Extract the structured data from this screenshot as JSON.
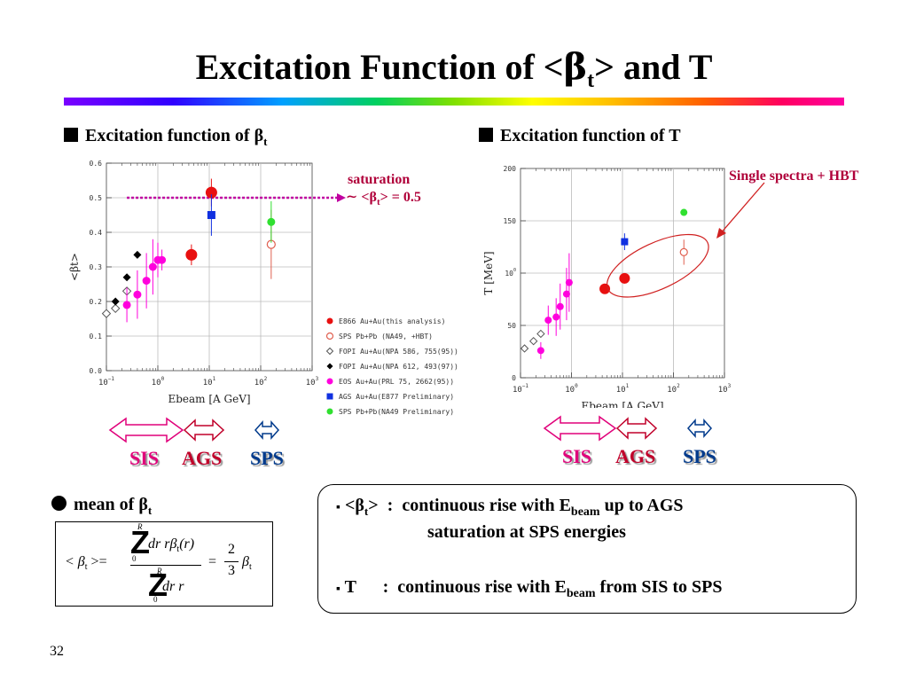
{
  "slide": {
    "title_parts": [
      "Excitation Function of <",
      "β",
      "t",
      "> and T"
    ],
    "page_number": "32"
  },
  "left_section": {
    "label": "Excitation function of ",
    "symbol": "β",
    "sub": "t"
  },
  "right_section": {
    "label": "Excitation function of ",
    "symbol": "T"
  },
  "annotation_saturation": {
    "line1": "saturation",
    "line2_prefix": "∼ <",
    "symbol": "β",
    "sub": "t",
    "line2_suffix": "> = 0.5"
  },
  "annotation_single": "Single spectra + HBT",
  "energy_arrows": {
    "sis": "SIS",
    "ags": "AGS",
    "sps": "SPS"
  },
  "mean_heading": {
    "label": "mean of ",
    "symbol": "β",
    "sub": "t"
  },
  "formula": {
    "lhs": "< β",
    "lhs_sub": "t",
    "lhs_end": " >=",
    "num": "dr rβ",
    "num_sub": "t",
    "num_end": "(r)",
    "den": "dr r",
    "int_sym": "Z",
    "int_upper": "R",
    "int_lower": "0",
    "eq": "=",
    "frac_num": "2",
    "frac_den": "3",
    "rhs": "β",
    "rhs_sub": "t"
  },
  "summary": {
    "bullet": "▪",
    "line1": {
      "pre": "<",
      "symbol": "β",
      "sub": "t",
      "post": ">  :  continuous rise with E",
      "esub": "beam",
      "tail": " up to AGS"
    },
    "line2": "saturation at SPS energies",
    "line3": {
      "pre": "T      :  continuous rise with E",
      "esub": "beam",
      "tail": " from SIS to SPS"
    }
  },
  "chart_data": [
    {
      "type": "scatter",
      "xscale": "log",
      "xlim": [
        0.1,
        1000
      ],
      "ylim": [
        0,
        0.6
      ],
      "ylabel": "<βt>",
      "xlabel": "Ebeam [A GeV]",
      "xticks": [
        "10−1",
        "100",
        "101",
        "102",
        "103"
      ],
      "yticks": [
        "0.0",
        "0.1",
        "0.2",
        "0.3",
        "0.4",
        "0.5",
        "0.6"
      ],
      "grid": true,
      "legend_position": "below-right",
      "reference_line": {
        "y": 0.5,
        "color": "#c000a0",
        "style": "dotted-arrow"
      },
      "series": [
        {
          "name": "E866 Au+Au(this analysis)",
          "color": "#e81010",
          "marker": "circle-filled",
          "x": [
            4.5,
            11
          ],
          "y": [
            0.335,
            0.515
          ],
          "yerr": [
            0.03,
            0.04
          ]
        },
        {
          "name": "SPS Pb+Pb (NA49, +HBT)",
          "color": "#e06050",
          "marker": "circle-open",
          "x": [
            160
          ],
          "y": [
            0.365
          ],
          "yerr": [
            0.1
          ]
        },
        {
          "name": "FOPI Au+Au(NPA 586, 755(95))",
          "color": "#555555",
          "marker": "diamond-open",
          "x": [
            0.1,
            0.15,
            0.25
          ],
          "y": [
            0.165,
            0.18,
            0.23
          ],
          "yerr": [
            0,
            0,
            0
          ]
        },
        {
          "name": "FOPI Au+Au(NPA 612, 493(97))",
          "color": "#000000",
          "marker": "diamond-filled",
          "x": [
            0.15,
            0.25,
            0.4
          ],
          "y": [
            0.2,
            0.27,
            0.335
          ],
          "yerr": [
            0,
            0,
            0
          ]
        },
        {
          "name": "EOS Au+Au(PRL 75, 2662(95))",
          "color": "#ff00dd",
          "marker": "circle-filled",
          "x": [
            0.25,
            0.4,
            0.6,
            0.8,
            1.0,
            1.2
          ],
          "y": [
            0.19,
            0.22,
            0.26,
            0.3,
            0.32,
            0.32
          ],
          "yerr": [
            0.05,
            0.07,
            0.08,
            0.08,
            0.05,
            0.03
          ]
        },
        {
          "name": "AGS Au+Au(E877 Preliminary)",
          "color": "#1030e0",
          "marker": "square-filled",
          "x": [
            11
          ],
          "y": [
            0.45
          ],
          "yerr": [
            0.06
          ]
        },
        {
          "name": "SPS Pb+Pb(NA49 Preliminary)",
          "color": "#30e030",
          "marker": "circle-filled",
          "x": [
            160
          ],
          "y": [
            0.43
          ],
          "yerr": [
            0.06
          ]
        }
      ]
    },
    {
      "type": "scatter",
      "xscale": "log",
      "xlim": [
        0.1,
        1000
      ],
      "ylim": [
        0,
        200
      ],
      "ylabel": "T [MeV]",
      "xlabel": "Ebeam [A GeV]",
      "xticks": [
        "10−1",
        "100",
        "101",
        "102",
        "103"
      ],
      "yticks": [
        "0",
        "50",
        "100",
        "150",
        "200"
      ],
      "grid": true,
      "series": [
        {
          "name": "E866 Au+Au(this analysis)",
          "color": "#e81010",
          "marker": "circle-filled",
          "x": [
            4.5,
            11
          ],
          "y": [
            85,
            95
          ],
          "yerr": [
            0,
            5
          ]
        },
        {
          "name": "SPS Pb+Pb (NA49, +HBT)",
          "color": "#e06050",
          "marker": "circle-open",
          "x": [
            160
          ],
          "y": [
            120
          ],
          "yerr": [
            12
          ]
        },
        {
          "name": "FOPI Au+Au(NPA 586, 755(95))",
          "color": "#555555",
          "marker": "diamond-open",
          "x": [
            0.12,
            0.18,
            0.25
          ],
          "y": [
            28,
            35,
            42
          ],
          "yerr": [
            0,
            0,
            0
          ]
        },
        {
          "name": "EOS Au+Au(PRL 75, 2662(95))",
          "color": "#ff00dd",
          "marker": "circle-filled",
          "x": [
            0.25,
            0.35,
            0.5,
            0.6,
            0.8,
            0.9
          ],
          "y": [
            26,
            55,
            58,
            68,
            80,
            91
          ],
          "yerr": [
            8,
            14,
            18,
            22,
            25,
            28
          ]
        },
        {
          "name": "AGS Au+Au(E877 Preliminary)",
          "color": "#1030e0",
          "marker": "square-filled",
          "x": [
            11
          ],
          "y": [
            130
          ],
          "yerr": [
            8
          ]
        },
        {
          "name": "SPS Pb+Pb(NA49 Preliminary)",
          "color": "#30e030",
          "marker": "circle-filled",
          "x": [
            160
          ],
          "y": [
            158
          ],
          "yerr": [
            0
          ]
        }
      ]
    }
  ]
}
